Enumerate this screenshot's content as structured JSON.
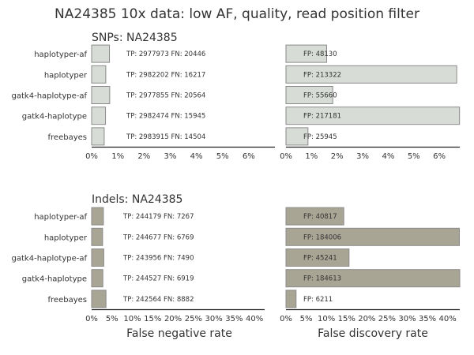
{
  "figure": {
    "title": "NA24385 10x data: low AF, quality, read position filter",
    "colors": {
      "snp": "#d7dcd6",
      "indel": "#a9a595",
      "edge": "#8a8a8a",
      "axis": "#222222",
      "text": "#333333"
    }
  },
  "chart_data": [
    {
      "type": "bar",
      "orientation": "horizontal",
      "panel": "snp-fnr",
      "title": "SNPs: NA24385",
      "xlabel": "",
      "categories": [
        "haplotyper-af",
        "haplotyper",
        "gatk4-haplotype-af",
        "gatk4-haplotype",
        "freebayes"
      ],
      "values": [
        0.68,
        0.54,
        0.69,
        0.53,
        0.48
      ],
      "unit": "%",
      "xlim": [
        0,
        7
      ],
      "xticks": [
        "0%",
        "1%",
        "2%",
        "3%",
        "4%",
        "5%",
        "6%"
      ],
      "annotations": [
        "TP: 2977973 FN: 20446",
        "TP: 2982202 FN: 16217",
        "TP: 2977855 FN: 20564",
        "TP: 2982474 FN: 15945",
        "TP: 2983915 FN: 14504"
      ],
      "color": "#d7dcd6"
    },
    {
      "type": "bar",
      "orientation": "horizontal",
      "panel": "snp-fdr",
      "title": "",
      "xlabel": "",
      "categories": [
        "haplotyper-af",
        "haplotyper",
        "gatk4-haplotype-af",
        "gatk4-haplotype",
        "freebayes"
      ],
      "values": [
        1.59,
        6.68,
        1.83,
        6.79,
        0.86
      ],
      "unit": "%",
      "xlim": [
        0,
        6.8
      ],
      "xticks": [
        "0%",
        "1%",
        "2%",
        "3%",
        "4%",
        "5%",
        "6%"
      ],
      "annotations": [
        "FP: 48130",
        "FP: 213322",
        "FP: 55660",
        "FP: 217181",
        "FP: 25945"
      ],
      "color": "#d7dcd6"
    },
    {
      "type": "bar",
      "orientation": "horizontal",
      "panel": "indel-fnr",
      "title": "Indels: NA24385",
      "xlabel": "False negative rate",
      "categories": [
        "haplotyper-af",
        "haplotyper",
        "gatk4-haplotype-af",
        "gatk4-haplotype",
        "freebayes"
      ],
      "values": [
        2.89,
        2.69,
        2.98,
        2.75,
        3.53
      ],
      "unit": "%",
      "xlim": [
        0,
        42.5
      ],
      "xticks": [
        "0%",
        "5%",
        "10%",
        "15%",
        "20%",
        "25%",
        "30%",
        "35%",
        "40%"
      ],
      "annotations": [
        "TP: 244179 FN: 7267",
        "TP: 244677 FN: 6769",
        "TP: 243956 FN: 7490",
        "TP: 244527 FN: 6919",
        "TP: 242564 FN: 8882"
      ],
      "color": "#a9a595"
    },
    {
      "type": "bar",
      "orientation": "horizontal",
      "panel": "indel-fdr",
      "title": "",
      "xlabel": "False discovery rate",
      "categories": [
        "haplotyper-af",
        "haplotyper",
        "gatk4-haplotype-af",
        "gatk4-haplotype",
        "freebayes"
      ],
      "values": [
        14.3,
        42.9,
        15.6,
        43.0,
        2.5
      ],
      "unit": "%",
      "xlim": [
        0,
        43
      ],
      "xticks": [
        "0%",
        "5%",
        "10%",
        "15%",
        "20%",
        "25%",
        "30%",
        "35%",
        "40%"
      ],
      "annotations": [
        "FP: 40817",
        "FP: 184006",
        "FP: 45241",
        "FP: 184613",
        "FP: 6211"
      ],
      "color": "#a9a595"
    }
  ]
}
